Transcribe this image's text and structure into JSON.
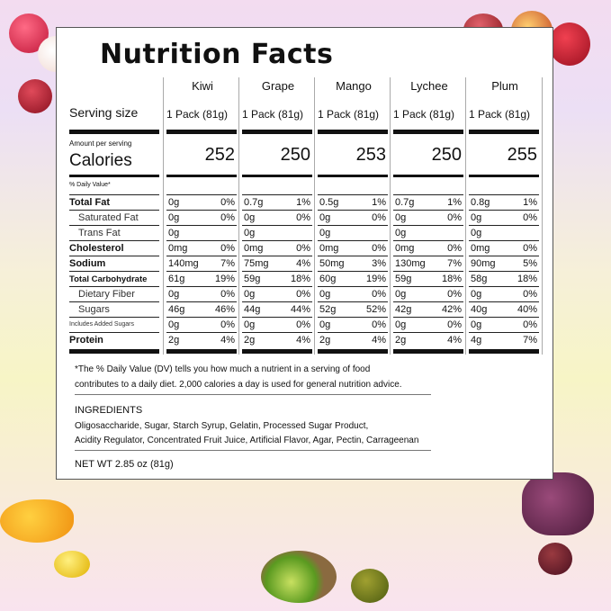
{
  "title": "Nutrition Facts",
  "products": [
    "Kiwi",
    "Grape",
    "Mango",
    "Lychee",
    "Plum"
  ],
  "serving_size_label": "Serving size",
  "serving_sizes": [
    "1 Pack (81g)",
    "1 Pack (81g)",
    "1 Pack (81g)",
    "1 Pack (81g)",
    "1 Pack (81g)"
  ],
  "amount_per_serving_label": "Amount per serving",
  "calories_label": "Calories",
  "calories": [
    "252",
    "250",
    "253",
    "250",
    "255"
  ],
  "daily_value_label": "% Daily Value*",
  "rows": [
    {
      "label": "Total Fat",
      "style": "bold",
      "values": [
        [
          "0g",
          "0%"
        ],
        [
          "0.7g",
          "1%"
        ],
        [
          "0.5g",
          "1%"
        ],
        [
          "0.7g",
          "1%"
        ],
        [
          "0.8g",
          "1%"
        ]
      ]
    },
    {
      "label": "Saturated Fat",
      "style": "indent",
      "values": [
        [
          "0g",
          "0%"
        ],
        [
          "0g",
          "0%"
        ],
        [
          "0g",
          "0%"
        ],
        [
          "0g",
          "0%"
        ],
        [
          "0g",
          "0%"
        ]
      ]
    },
    {
      "label": "Trans Fat",
      "style": "indent",
      "values": [
        [
          "0g",
          ""
        ],
        [
          "0g",
          ""
        ],
        [
          "0g",
          ""
        ],
        [
          "0g",
          ""
        ],
        [
          "0g",
          ""
        ]
      ]
    },
    {
      "label": "Cholesterol",
      "style": "bold",
      "values": [
        [
          "0mg",
          "0%"
        ],
        [
          "0mg",
          "0%"
        ],
        [
          "0mg",
          "0%"
        ],
        [
          "0mg",
          "0%"
        ],
        [
          "0mg",
          "0%"
        ]
      ]
    },
    {
      "label": "Sodium",
      "style": "bold",
      "values": [
        [
          "140mg",
          "7%"
        ],
        [
          "75mg",
          "4%"
        ],
        [
          "50mg",
          "3%"
        ],
        [
          "130mg",
          "7%"
        ],
        [
          "90mg",
          "5%"
        ]
      ]
    },
    {
      "label": "Total Carbohydrate",
      "style": "boldsmall",
      "values": [
        [
          "61g",
          "19%"
        ],
        [
          "59g",
          "18%"
        ],
        [
          "60g",
          "19%"
        ],
        [
          "59g",
          "18%"
        ],
        [
          "58g",
          "18%"
        ]
      ]
    },
    {
      "label": "Dietary Fiber",
      "style": "indent",
      "values": [
        [
          "0g",
          "0%"
        ],
        [
          "0g",
          "0%"
        ],
        [
          "0g",
          "0%"
        ],
        [
          "0g",
          "0%"
        ],
        [
          "0g",
          "0%"
        ]
      ]
    },
    {
      "label": "Sugars",
      "style": "indent",
      "values": [
        [
          "46g",
          "46%"
        ],
        [
          "44g",
          "44%"
        ],
        [
          "52g",
          "52%"
        ],
        [
          "42g",
          "42%"
        ],
        [
          "40g",
          "40%"
        ]
      ]
    },
    {
      "label": "Includes  Added Sugars",
      "style": "tiny",
      "values": [
        [
          "0g",
          "0%"
        ],
        [
          "0g",
          "0%"
        ],
        [
          "0g",
          "0%"
        ],
        [
          "0g",
          "0%"
        ],
        [
          "0g",
          "0%"
        ]
      ]
    },
    {
      "label": "Protein",
      "style": "bold",
      "values": [
        [
          "2g",
          "4%"
        ],
        [
          "2g",
          "4%"
        ],
        [
          "2g",
          "4%"
        ],
        [
          "2g",
          "4%"
        ],
        [
          "4g",
          "7%"
        ]
      ]
    }
  ],
  "footnote": [
    "*The % Daily Value (DV) tells you how much a nutrient in a serving of food",
    "contributes to a daily diet. 2,000 calories a day is used for general nutrition advice."
  ],
  "ingredients_label": "INGREDIENTS",
  "ingredients": [
    "Oligosaccharide, Sugar, Starch Syrup, Gelatin, Processed Sugar Product,",
    "Acidity Regulator, Concentrated Fruit Juice, Artificial Flavor, Agar, Pectin, Carrageenan"
  ],
  "net_wt": "NET WT 2.85 oz (81g)"
}
